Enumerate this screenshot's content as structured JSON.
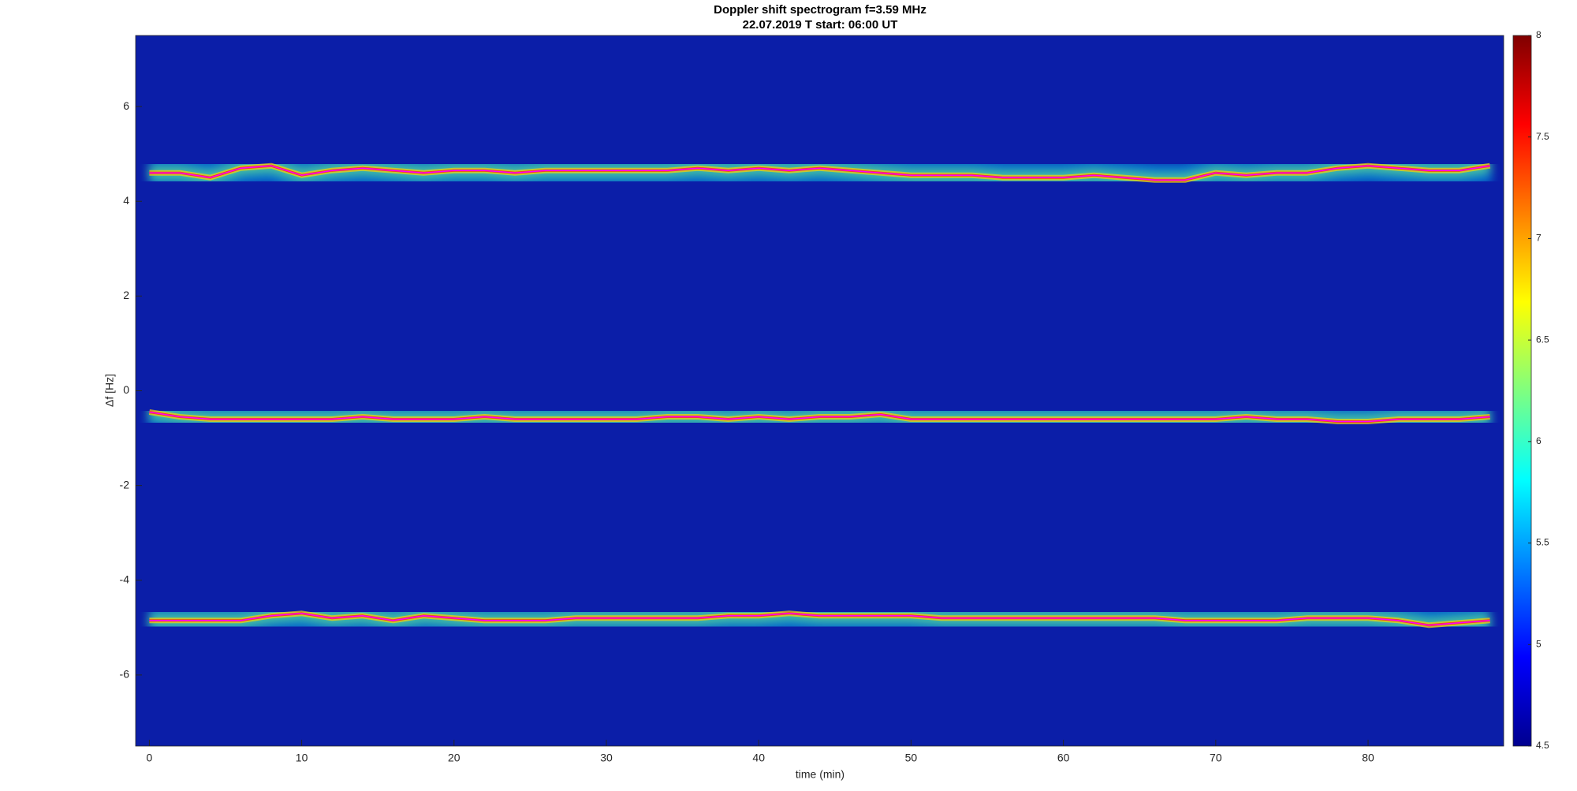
{
  "chart_data": {
    "type": "spectrogram",
    "title": "Doppler shift spectrogram f=3.59 MHz",
    "subtitle": "22.07.2019   T start: 06:00 UT",
    "x_label": "time (min)",
    "y_label": "Δf [Hz]",
    "xlim": [
      -0.9,
      88.9
    ],
    "ylim": [
      -7.5,
      7.5
    ],
    "xticks": [
      0,
      10,
      20,
      30,
      40,
      50,
      60,
      70,
      80
    ],
    "yticks": [
      -6,
      -4,
      -2,
      0,
      2,
      4,
      6
    ],
    "colormap": "jet",
    "clim": [
      4.5,
      8
    ],
    "cticks": [
      4.5,
      5,
      5.5,
      6,
      6.5,
      7,
      7.5,
      8
    ],
    "x": [
      0,
      2,
      4,
      6,
      8,
      10,
      12,
      14,
      16,
      18,
      20,
      22,
      24,
      26,
      28,
      30,
      32,
      34,
      36,
      38,
      40,
      42,
      44,
      46,
      48,
      50,
      52,
      54,
      56,
      58,
      60,
      62,
      64,
      66,
      68,
      70,
      72,
      74,
      76,
      78,
      80,
      82,
      84,
      86,
      88
    ],
    "series": [
      {
        "color": "#ff00ff",
        "values": [
          4.6,
          4.6,
          4.5,
          4.7,
          4.75,
          4.55,
          4.65,
          4.7,
          4.65,
          4.6,
          4.65,
          4.65,
          4.6,
          4.65,
          4.65,
          4.65,
          4.65,
          4.65,
          4.7,
          4.65,
          4.7,
          4.65,
          4.7,
          4.65,
          4.6,
          4.55,
          4.55,
          4.55,
          4.5,
          4.5,
          4.5,
          4.55,
          4.5,
          4.45,
          4.45,
          4.6,
          4.55,
          4.6,
          4.6,
          4.7,
          4.75,
          4.7,
          4.65,
          4.65,
          4.75
        ]
      },
      {
        "color": "#ff00ff",
        "values": [
          -0.45,
          -0.55,
          -0.6,
          -0.6,
          -0.6,
          -0.6,
          -0.6,
          -0.55,
          -0.6,
          -0.6,
          -0.6,
          -0.55,
          -0.6,
          -0.6,
          -0.6,
          -0.6,
          -0.6,
          -0.55,
          -0.55,
          -0.6,
          -0.55,
          -0.6,
          -0.55,
          -0.55,
          -0.5,
          -0.6,
          -0.6,
          -0.6,
          -0.6,
          -0.6,
          -0.6,
          -0.6,
          -0.6,
          -0.6,
          -0.6,
          -0.6,
          -0.55,
          -0.6,
          -0.6,
          -0.65,
          -0.65,
          -0.6,
          -0.6,
          -0.6,
          -0.55
        ]
      },
      {
        "color": "#ff00ff",
        "values": [
          -4.85,
          -4.85,
          -4.85,
          -4.85,
          -4.75,
          -4.7,
          -4.8,
          -4.75,
          -4.85,
          -4.75,
          -4.8,
          -4.85,
          -4.85,
          -4.85,
          -4.8,
          -4.8,
          -4.8,
          -4.8,
          -4.8,
          -4.75,
          -4.75,
          -4.7,
          -4.75,
          -4.75,
          -4.75,
          -4.75,
          -4.8,
          -4.8,
          -4.8,
          -4.8,
          -4.8,
          -4.8,
          -4.8,
          -4.8,
          -4.85,
          -4.85,
          -4.85,
          -4.85,
          -4.8,
          -4.8,
          -4.8,
          -4.85,
          -4.95,
          -4.9,
          -4.85
        ]
      }
    ]
  }
}
